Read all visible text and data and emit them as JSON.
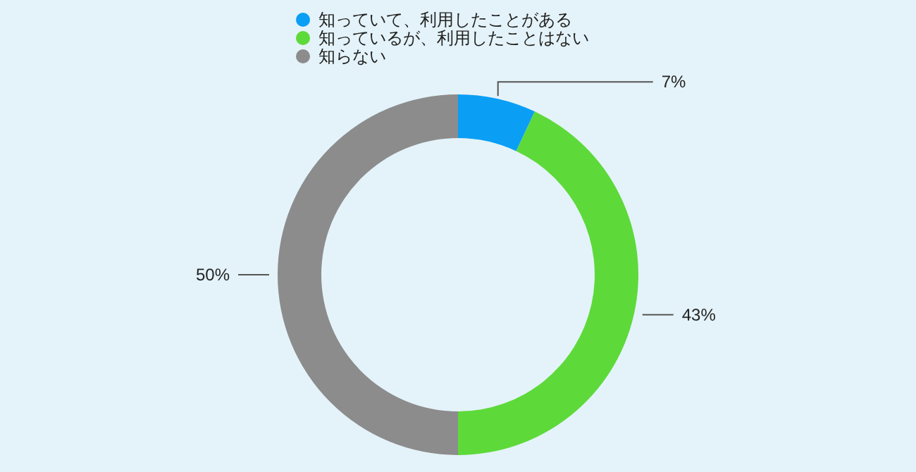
{
  "chart_data": {
    "type": "donut",
    "categories": [
      "知っていて、利用したことがある",
      "知っているが、利用したことはない",
      "知らない"
    ],
    "values": [
      7,
      43,
      50
    ],
    "colors": [
      "#0a9ff5",
      "#5ed93a",
      "#8c8c8c"
    ],
    "value_labels": [
      "7%",
      "43%",
      "50%"
    ],
    "legend": "top"
  }
}
